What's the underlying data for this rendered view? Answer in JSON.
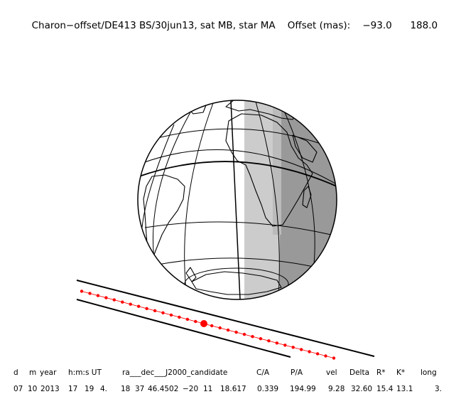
{
  "header": {
    "title": "Charon−offset/DE413 BS/30jun13, sat MB, star MA",
    "offset_label": "Offset (mas):",
    "offset_x": "−93.0",
    "offset_y": "188.0"
  },
  "table": {
    "headers": [
      {
        "key": "d",
        "text": "d"
      },
      {
        "key": "m",
        "text": "m"
      },
      {
        "key": "year",
        "text": "year"
      },
      {
        "key": "hms",
        "text": "h:m:s UT"
      },
      {
        "key": "radec",
        "text": "ra___dec___J2000_candidate"
      },
      {
        "key": "ca",
        "text": "C/A"
      },
      {
        "key": "pa",
        "text": "P/A"
      },
      {
        "key": "vel",
        "text": "vel"
      },
      {
        "key": "delta",
        "text": "Delta"
      },
      {
        "key": "rstar",
        "text": "R*"
      },
      {
        "key": "kstar",
        "text": "K*"
      },
      {
        "key": "long",
        "text": "long"
      }
    ],
    "values": {
      "d": "07",
      "m": "10",
      "year": "2013",
      "h": "17",
      "mi": "19",
      "s": "4.",
      "ra_h": "18",
      "ra_m": "37",
      "ra_s": "46.4502",
      "dec_d": "−20",
      "dec_m": "11",
      "dec_s": "18.617",
      "ca": "0.339",
      "pa": "194.99",
      "vel": "9.28",
      "delta": "32.60",
      "rstar": "15.4",
      "kstar": "13.1",
      "long": "3."
    }
  },
  "colors": {
    "night": "#999999",
    "twilight": "#cccccc",
    "track_dots": "#ff0000",
    "lines": "#000000"
  },
  "icons": {
    "closest_approach": "red-filled-circle",
    "track_points": "red-dot"
  }
}
